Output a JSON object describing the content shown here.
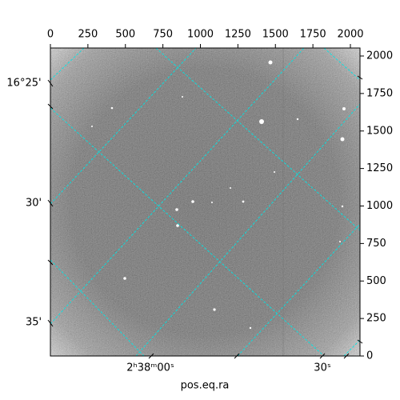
{
  "chart_data": {
    "type": "image",
    "xlabel": "pos.eq.ra",
    "xlim": [
      0,
      2048
    ],
    "xticks": [
      0,
      250,
      500,
      750,
      1000,
      1250,
      1500,
      1750,
      2000
    ],
    "ylim": [
      0,
      2048
    ],
    "yticks": [
      0,
      250,
      500,
      750,
      1000,
      1250,
      1500,
      1750,
      2000
    ],
    "dec_labels": [
      "16°25'",
      "30'",
      "35'"
    ],
    "ra_labels": [
      "2ʰ38ᵐ00ˢ",
      "30ˢ"
    ],
    "grid": true,
    "grid_color": "#00e5e5"
  }
}
